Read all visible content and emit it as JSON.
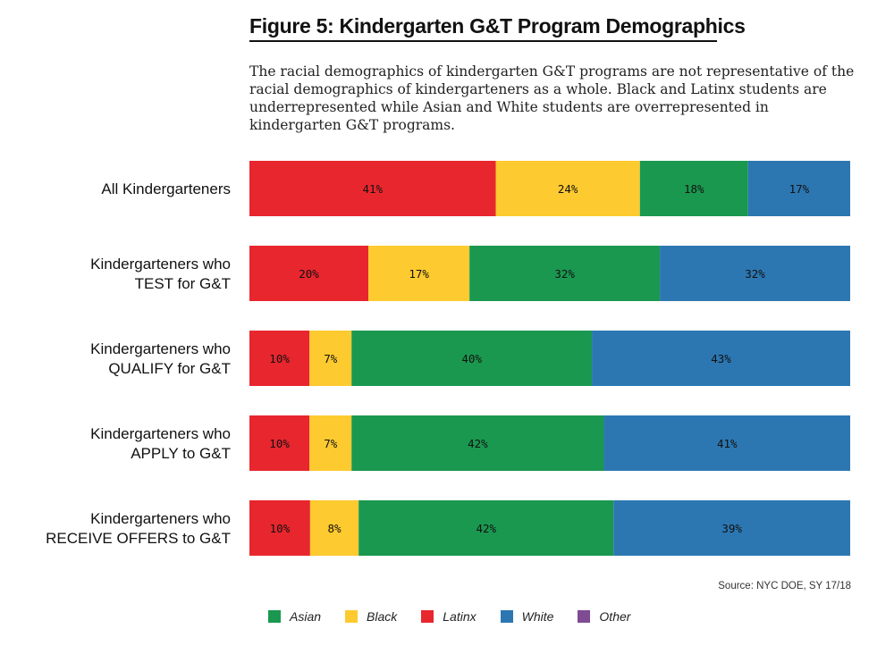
{
  "title": "Figure 5: Kindergarten G&T Program Demographics",
  "description": "The racial demographics of kindergarten G&T programs are not representative of the racial demographics of kindergarteners as a whole. Black and Latinx students are underrepresented while Asian and White students are overrepresented in kindergarten G&T programs.",
  "source": "Source: NYC DOE, SY 17/18",
  "legend": [
    {
      "name": "Asian",
      "color": "#1a9850"
    },
    {
      "name": "Black",
      "color": "#fdca30"
    },
    {
      "name": "Latinx",
      "color": "#e8262e"
    },
    {
      "name": "White",
      "color": "#2c77b2"
    },
    {
      "name": "Other",
      "color": "#7f4b93"
    }
  ],
  "chart_data": {
    "type": "bar",
    "orientation": "horizontal",
    "stacked": true,
    "title": "Figure 5: Kindergarten G&T Program Demographics",
    "unit": "%",
    "categories": [
      [
        "All Kindergarteners"
      ],
      [
        "Kindergarteners who",
        "TEST for G&T"
      ],
      [
        "Kindergarteners who",
        "QUALIFY for G&T"
      ],
      [
        "Kindergarteners who",
        "APPLY to G&T"
      ],
      [
        "Kindergarteners who",
        "RECEIVE OFFERS to G&T"
      ]
    ],
    "series": [
      {
        "name": "Latinx",
        "color": "#e8262e",
        "values": [
          41,
          20,
          10,
          10,
          10
        ]
      },
      {
        "name": "Black",
        "color": "#fdca30",
        "values": [
          24,
          17,
          7,
          7,
          8
        ]
      },
      {
        "name": "Asian",
        "color": "#1a9850",
        "values": [
          18,
          32,
          40,
          42,
          42
        ]
      },
      {
        "name": "White",
        "color": "#2c77b2",
        "values": [
          17,
          32,
          43,
          41,
          39
        ]
      }
    ],
    "legend_position": "bottom",
    "grid": false
  }
}
